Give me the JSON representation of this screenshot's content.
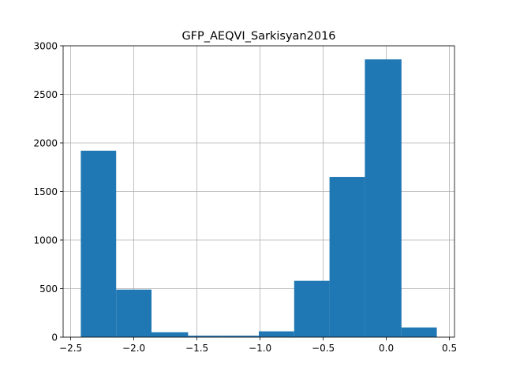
{
  "chart_data": {
    "type": "bar",
    "title": "GFP_AEQVI_Sarkisyan2016",
    "xlabel": "",
    "ylabel": "",
    "bins": [
      {
        "x0": -2.42,
        "x1": -2.14,
        "count": 1920
      },
      {
        "x0": -2.14,
        "x1": -1.86,
        "count": 490
      },
      {
        "x0": -1.86,
        "x1": -1.57,
        "count": 50
      },
      {
        "x0": -1.57,
        "x1": -1.29,
        "count": 15
      },
      {
        "x0": -1.29,
        "x1": -1.01,
        "count": 15
      },
      {
        "x0": -1.01,
        "x1": -0.73,
        "count": 60
      },
      {
        "x0": -0.73,
        "x1": -0.45,
        "count": 580
      },
      {
        "x0": -0.45,
        "x1": -0.17,
        "count": 1650
      },
      {
        "x0": -0.17,
        "x1": 0.12,
        "count": 2860
      },
      {
        "x0": 0.12,
        "x1": 0.4,
        "count": 100
      }
    ],
    "xlim": [
      -2.56,
      0.54
    ],
    "ylim": [
      0,
      3000
    ],
    "xticks": [
      -2.5,
      -2.0,
      -1.5,
      -1.0,
      -0.5,
      0.0,
      0.5
    ],
    "xtick_labels": [
      "−2.5",
      "−2.0",
      "−1.5",
      "−1.0",
      "−0.5",
      "0.0",
      "0.5"
    ],
    "yticks": [
      0,
      500,
      1000,
      1500,
      2000,
      2500,
      3000
    ],
    "ytick_labels": [
      "0",
      "500",
      "1000",
      "1500",
      "2000",
      "2500",
      "3000"
    ],
    "grid": true,
    "colors": {
      "bar": "#1f77b4",
      "grid": "#b0b0b0",
      "axis": "#000000"
    }
  }
}
